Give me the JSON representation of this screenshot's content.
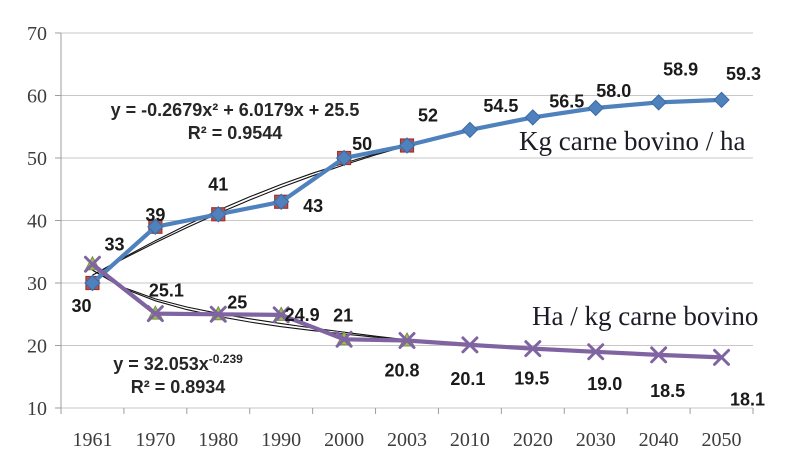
{
  "chart_data": {
    "type": "line",
    "title": "",
    "xlabel": "",
    "ylabel": "",
    "ylim": [
      10,
      70
    ],
    "y_tick_step": 10,
    "grid": true,
    "legend_position": "floating-inside-plot",
    "categories": [
      "1961",
      "1970",
      "1980",
      "1990",
      "2000",
      "2003",
      "2010",
      "2020",
      "2030",
      "2040",
      "2050"
    ],
    "y_ticks": [
      "70",
      "60",
      "50",
      "40",
      "30",
      "20",
      "10"
    ],
    "series": [
      {
        "name": "Kg carne bovino / ha",
        "values": [
          30,
          39,
          41,
          43,
          50,
          52,
          54.5,
          56.5,
          58.0,
          58.9,
          59.3
        ],
        "labels": [
          "30",
          "39",
          "41",
          "43",
          "50",
          "52",
          "54.5",
          "56.5",
          "58.0",
          "58.9",
          "59.3"
        ],
        "marker": "diamond",
        "historical": {
          "marker": "square",
          "through_index": 5
        }
      },
      {
        "name": "Ha / kg carne bovino",
        "values": [
          33,
          25.1,
          25,
          24.9,
          21,
          20.8,
          20.1,
          19.5,
          19.0,
          18.5,
          18.1
        ],
        "labels": [
          "33",
          "25.1",
          "25",
          "24.9",
          "21",
          "20.8",
          "20.1",
          "19.5",
          "19.0",
          "18.5",
          "18.1"
        ],
        "marker": "x",
        "historical": {
          "marker": "triangle",
          "through_index": 5
        }
      }
    ],
    "trendlines": [
      {
        "equation": "y = -0.2679x² + 6.0179x + 25.5",
        "r2": "R² = 0.9544",
        "fits_series": "Kg carne bovino / ha",
        "sample": [
          31.25,
          33.92,
          36.46,
          38.87,
          41.14,
          43.28,
          45.29,
          47.16,
          48.89,
          50.49,
          51.96
        ]
      },
      {
        "equation_base": "y = 32.053x",
        "equation_exp": "-0.239",
        "r2": "R² = 0.8934",
        "fits_series": "Ha / kg carne bovino",
        "sample": [
          32.05,
          29.1,
          27.16,
          25.75,
          24.65,
          23.76,
          23.01,
          22.38,
          21.82,
          21.33,
          20.89
        ]
      }
    ],
    "colors": {
      "accent_blue": "#4f81bd",
      "blue_marker_stroke": "#3b6ba5",
      "marker_red": "#c0504d",
      "red_stroke": "#943634",
      "accent_purple": "#8064a2",
      "marker_green": "#9bbb59",
      "green_stroke": "#76923c",
      "trendline": "#121212",
      "gridline": "#c7c7c7",
      "axis": "#9e9e9e",
      "data_label": "#1a1a1a",
      "axis_label": "#3d3d3d",
      "series_label": "#1c1c26"
    }
  }
}
